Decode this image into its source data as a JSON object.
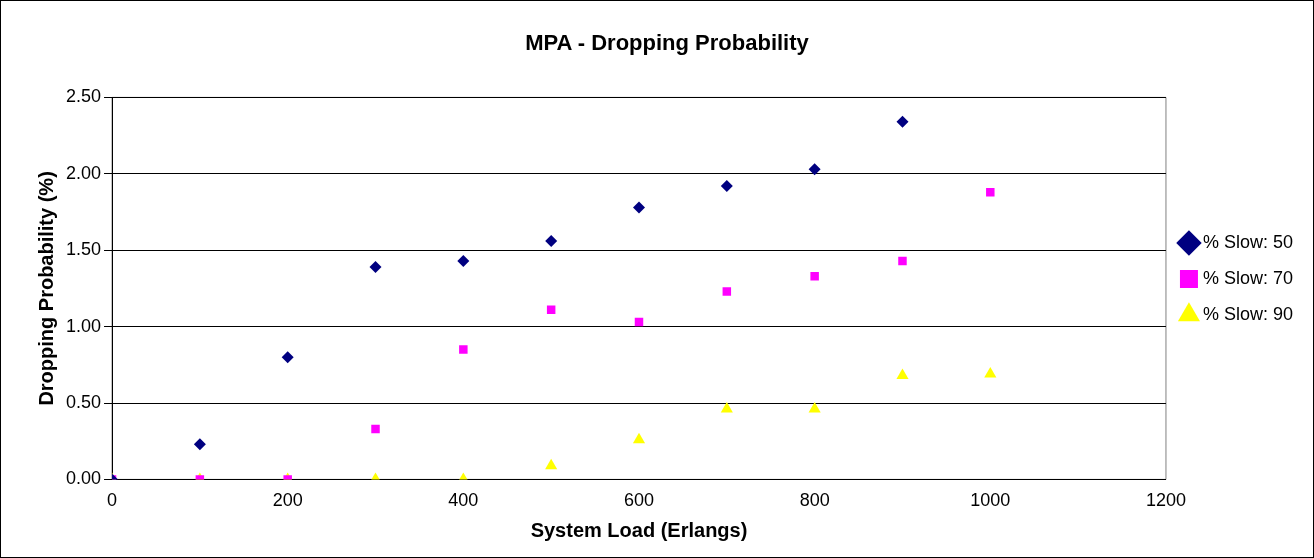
{
  "chart_data": {
    "type": "scatter",
    "title": "MPA - Dropping Probability",
    "xlabel": "System Load (Erlangs)",
    "ylabel": "Dropping Probability (%)",
    "xlim": [
      0,
      1200
    ],
    "xticks": [
      0,
      200,
      400,
      600,
      800,
      1000,
      1200
    ],
    "ylim": [
      0,
      2.5
    ],
    "yticks": [
      {
        "value": 0,
        "label": "0.00"
      },
      {
        "value": 0.5,
        "label": "0.50"
      },
      {
        "value": 1,
        "label": "1.00"
      },
      {
        "value": 1.5,
        "label": "1.50"
      },
      {
        "value": 2,
        "label": "2.00"
      },
      {
        "value": 2.5,
        "label": "2.50"
      }
    ],
    "grid": "y",
    "legend": "right",
    "series": [
      {
        "name": "% Slow: 50",
        "color": "#000080",
        "marker": "diamond",
        "x": [
          0,
          100,
          200,
          300,
          400,
          500,
          600,
          700,
          800,
          900
        ],
        "values": [
          0,
          0.23,
          0.8,
          1.39,
          1.43,
          1.56,
          1.78,
          1.92,
          2.03,
          2.34
        ]
      },
      {
        "name": "% Slow: 70",
        "color": "#ff00ff",
        "marker": "square",
        "x": [
          0,
          100,
          200,
          300,
          400,
          500,
          600,
          700,
          800,
          900,
          1000
        ],
        "values": [
          0,
          0,
          0,
          0.33,
          0.85,
          1.11,
          1.03,
          1.23,
          1.33,
          1.43,
          1.88
        ]
      },
      {
        "name": "% Slow: 90",
        "color": "#ffff00",
        "marker": "triangle",
        "x": [
          0,
          100,
          200,
          300,
          400,
          500,
          600,
          700,
          800,
          900,
          1000
        ],
        "values": [
          0,
          0,
          0,
          0,
          0,
          0.09,
          0.26,
          0.46,
          0.46,
          0.68,
          0.69
        ]
      }
    ]
  }
}
